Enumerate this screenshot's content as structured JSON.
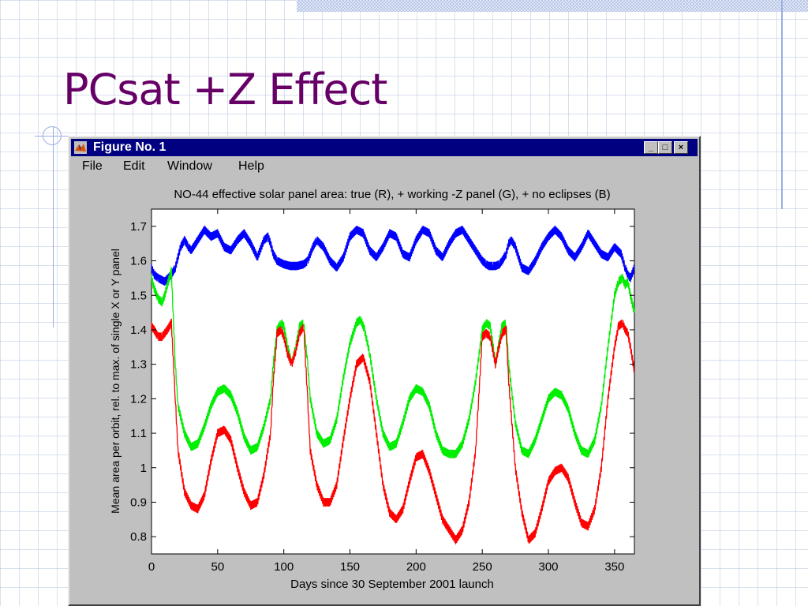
{
  "slide": {
    "title": "PCsat +Z Effect"
  },
  "window": {
    "title": "Figure No. 1",
    "buttons": {
      "minimize": "_",
      "maximize": "□",
      "close": "×"
    },
    "menu": [
      "File",
      "Edit",
      "Window",
      "Help"
    ]
  },
  "colors": {
    "title": "#660066",
    "titlebar": "#000080",
    "red": "#ff0000",
    "green": "#00ee00",
    "blue": "#0000ff"
  },
  "chart_data": {
    "type": "line",
    "title": "NO-44 effective solar panel area: true (R), + working -Z panel (G), + no eclipses (B)",
    "xlabel": "Days since 30 September 2001 launch",
    "ylabel": "Mean area per orbit, rel. to max. of single X or Y panel",
    "xlim": [
      0,
      365
    ],
    "ylim": [
      0.75,
      1.75
    ],
    "xticks": [
      0,
      50,
      100,
      150,
      200,
      250,
      300,
      350
    ],
    "yticks": [
      0.8,
      0.9,
      1,
      1.1,
      1.2,
      1.3,
      1.4,
      1.5,
      1.6,
      1.7
    ],
    "ytick_labels": [
      "0.8",
      "0.9",
      "1",
      "1.1",
      "1.2",
      "1.3",
      "1.4",
      "1.5",
      "1.6",
      "1.7"
    ],
    "series": [
      {
        "color": "#0000ff",
        "x": [
          0,
          2,
          5,
          10,
          15,
          18,
          20,
          22,
          25,
          28,
          30,
          35,
          40,
          45,
          50,
          55,
          60,
          65,
          70,
          75,
          80,
          85,
          88,
          90,
          92,
          95,
          100,
          105,
          110,
          115,
          118,
          120,
          122,
          125,
          130,
          135,
          140,
          145,
          150,
          155,
          160,
          165,
          170,
          175,
          180,
          185,
          190,
          195,
          200,
          205,
          210,
          215,
          220,
          225,
          230,
          235,
          240,
          245,
          250,
          253,
          255,
          258,
          260,
          263,
          265,
          268,
          270,
          272,
          275,
          280,
          285,
          290,
          295,
          300,
          305,
          310,
          315,
          320,
          325,
          330,
          335,
          340,
          345,
          350,
          355,
          358,
          360,
          362,
          365
        ],
        "y": [
          1.58,
          1.56,
          1.55,
          1.54,
          1.56,
          1.58,
          1.61,
          1.64,
          1.66,
          1.64,
          1.63,
          1.66,
          1.69,
          1.67,
          1.68,
          1.64,
          1.63,
          1.66,
          1.68,
          1.65,
          1.61,
          1.66,
          1.67,
          1.65,
          1.62,
          1.6,
          1.59,
          1.585,
          1.585,
          1.59,
          1.6,
          1.62,
          1.64,
          1.66,
          1.64,
          1.6,
          1.58,
          1.61,
          1.67,
          1.69,
          1.68,
          1.63,
          1.61,
          1.64,
          1.68,
          1.67,
          1.62,
          1.61,
          1.66,
          1.69,
          1.68,
          1.63,
          1.61,
          1.65,
          1.68,
          1.69,
          1.66,
          1.63,
          1.6,
          1.59,
          1.585,
          1.585,
          1.585,
          1.59,
          1.6,
          1.62,
          1.65,
          1.66,
          1.64,
          1.58,
          1.57,
          1.6,
          1.64,
          1.67,
          1.69,
          1.67,
          1.63,
          1.61,
          1.64,
          1.68,
          1.65,
          1.62,
          1.61,
          1.64,
          1.62,
          1.58,
          1.56,
          1.55,
          1.58
        ]
      },
      {
        "color": "#00ee00",
        "x": [
          0,
          2,
          5,
          8,
          10,
          12,
          15,
          18,
          20,
          25,
          30,
          35,
          40,
          45,
          50,
          55,
          60,
          65,
          70,
          75,
          80,
          85,
          90,
          92,
          95,
          98,
          100,
          103,
          106,
          109,
          112,
          115,
          118,
          120,
          125,
          130,
          135,
          140,
          145,
          150,
          155,
          158,
          161,
          165,
          170,
          175,
          180,
          185,
          190,
          195,
          200,
          205,
          210,
          215,
          220,
          225,
          230,
          235,
          240,
          245,
          250,
          253,
          256,
          258,
          260,
          262,
          265,
          268,
          270,
          275,
          280,
          285,
          290,
          295,
          300,
          305,
          310,
          315,
          320,
          325,
          330,
          335,
          340,
          345,
          350,
          353,
          356,
          358,
          360,
          362,
          365
        ],
        "y": [
          1.55,
          1.52,
          1.49,
          1.48,
          1.5,
          1.53,
          1.57,
          1.3,
          1.18,
          1.1,
          1.06,
          1.07,
          1.12,
          1.18,
          1.22,
          1.23,
          1.21,
          1.16,
          1.09,
          1.05,
          1.06,
          1.12,
          1.2,
          1.3,
          1.4,
          1.42,
          1.41,
          1.35,
          1.3,
          1.35,
          1.41,
          1.42,
          1.3,
          1.2,
          1.1,
          1.07,
          1.08,
          1.14,
          1.26,
          1.36,
          1.42,
          1.43,
          1.4,
          1.33,
          1.2,
          1.1,
          1.06,
          1.07,
          1.13,
          1.2,
          1.23,
          1.22,
          1.18,
          1.1,
          1.05,
          1.04,
          1.04,
          1.07,
          1.14,
          1.25,
          1.4,
          1.42,
          1.41,
          1.36,
          1.3,
          1.35,
          1.41,
          1.42,
          1.3,
          1.13,
          1.05,
          1.04,
          1.08,
          1.14,
          1.2,
          1.22,
          1.21,
          1.17,
          1.1,
          1.05,
          1.04,
          1.08,
          1.18,
          1.35,
          1.5,
          1.54,
          1.55,
          1.53,
          1.54,
          1.5,
          1.45
        ]
      },
      {
        "color": "#ff0000",
        "x": [
          0,
          2,
          5,
          8,
          10,
          12,
          15,
          18,
          20,
          25,
          30,
          35,
          40,
          45,
          50,
          55,
          60,
          65,
          70,
          75,
          80,
          85,
          90,
          92,
          95,
          98,
          100,
          103,
          106,
          109,
          112,
          115,
          118,
          120,
          125,
          130,
          135,
          140,
          145,
          150,
          155,
          160,
          165,
          170,
          175,
          180,
          185,
          190,
          195,
          200,
          205,
          210,
          215,
          220,
          225,
          230,
          235,
          240,
          245,
          250,
          253,
          256,
          258,
          260,
          262,
          265,
          268,
          270,
          275,
          280,
          285,
          290,
          295,
          300,
          305,
          310,
          315,
          320,
          325,
          330,
          335,
          340,
          345,
          350,
          353,
          356,
          358,
          360,
          362,
          365
        ],
        "y": [
          1.41,
          1.4,
          1.38,
          1.38,
          1.39,
          1.4,
          1.42,
          1.2,
          1.05,
          0.93,
          0.89,
          0.88,
          0.92,
          1.02,
          1.1,
          1.11,
          1.08,
          1.0,
          0.93,
          0.89,
          0.9,
          0.98,
          1.1,
          1.25,
          1.39,
          1.4,
          1.38,
          1.33,
          1.3,
          1.34,
          1.39,
          1.41,
          1.2,
          1.05,
          0.95,
          0.9,
          0.9,
          0.95,
          1.08,
          1.2,
          1.3,
          1.32,
          1.25,
          1.1,
          0.95,
          0.87,
          0.85,
          0.88,
          0.96,
          1.03,
          1.04,
          0.99,
          0.92,
          0.85,
          0.82,
          0.79,
          0.82,
          0.9,
          1.05,
          1.38,
          1.39,
          1.38,
          1.34,
          1.3,
          1.34,
          1.39,
          1.4,
          1.25,
          1.0,
          0.87,
          0.79,
          0.81,
          0.88,
          0.96,
          0.99,
          1.0,
          0.97,
          0.9,
          0.84,
          0.83,
          0.88,
          1.0,
          1.2,
          1.35,
          1.41,
          1.42,
          1.4,
          1.39,
          1.35,
          1.28
        ]
      }
    ]
  }
}
